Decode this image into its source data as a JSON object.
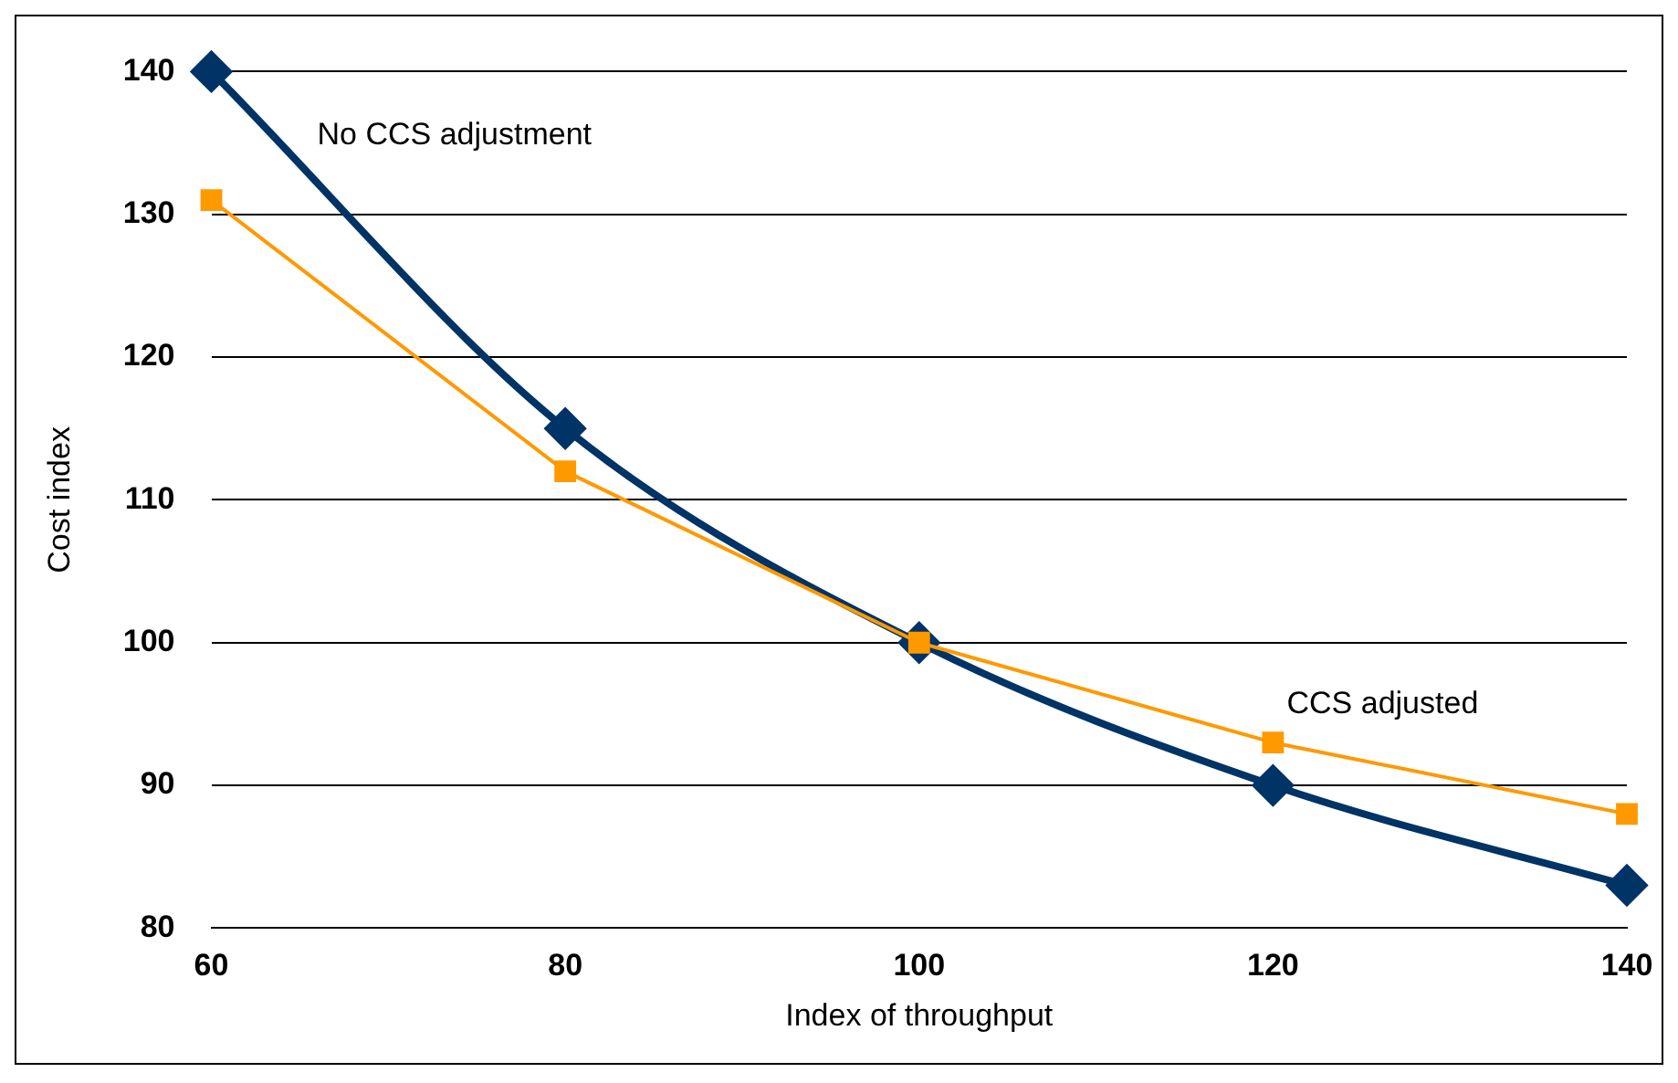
{
  "chart_data": {
    "type": "line",
    "xlabel": "Index of throughput",
    "ylabel": "Cost index",
    "x": [
      60,
      80,
      100,
      120,
      140
    ],
    "series": [
      {
        "name": "No CCS adjustment",
        "color": "#003366",
        "values": [
          140,
          115,
          100,
          90,
          83
        ],
        "marker": "diamond"
      },
      {
        "name": "CCS adjusted",
        "color": "#ff9900",
        "values": [
          131,
          112,
          100,
          93,
          88
        ],
        "marker": "square"
      }
    ],
    "xlim": [
      60,
      140
    ],
    "xticks": [
      60,
      80,
      100,
      120,
      140
    ],
    "ylim": [
      80,
      140
    ],
    "yticks": [
      80,
      90,
      100,
      110,
      120,
      130,
      140
    ],
    "grid": "y",
    "legend": false
  }
}
